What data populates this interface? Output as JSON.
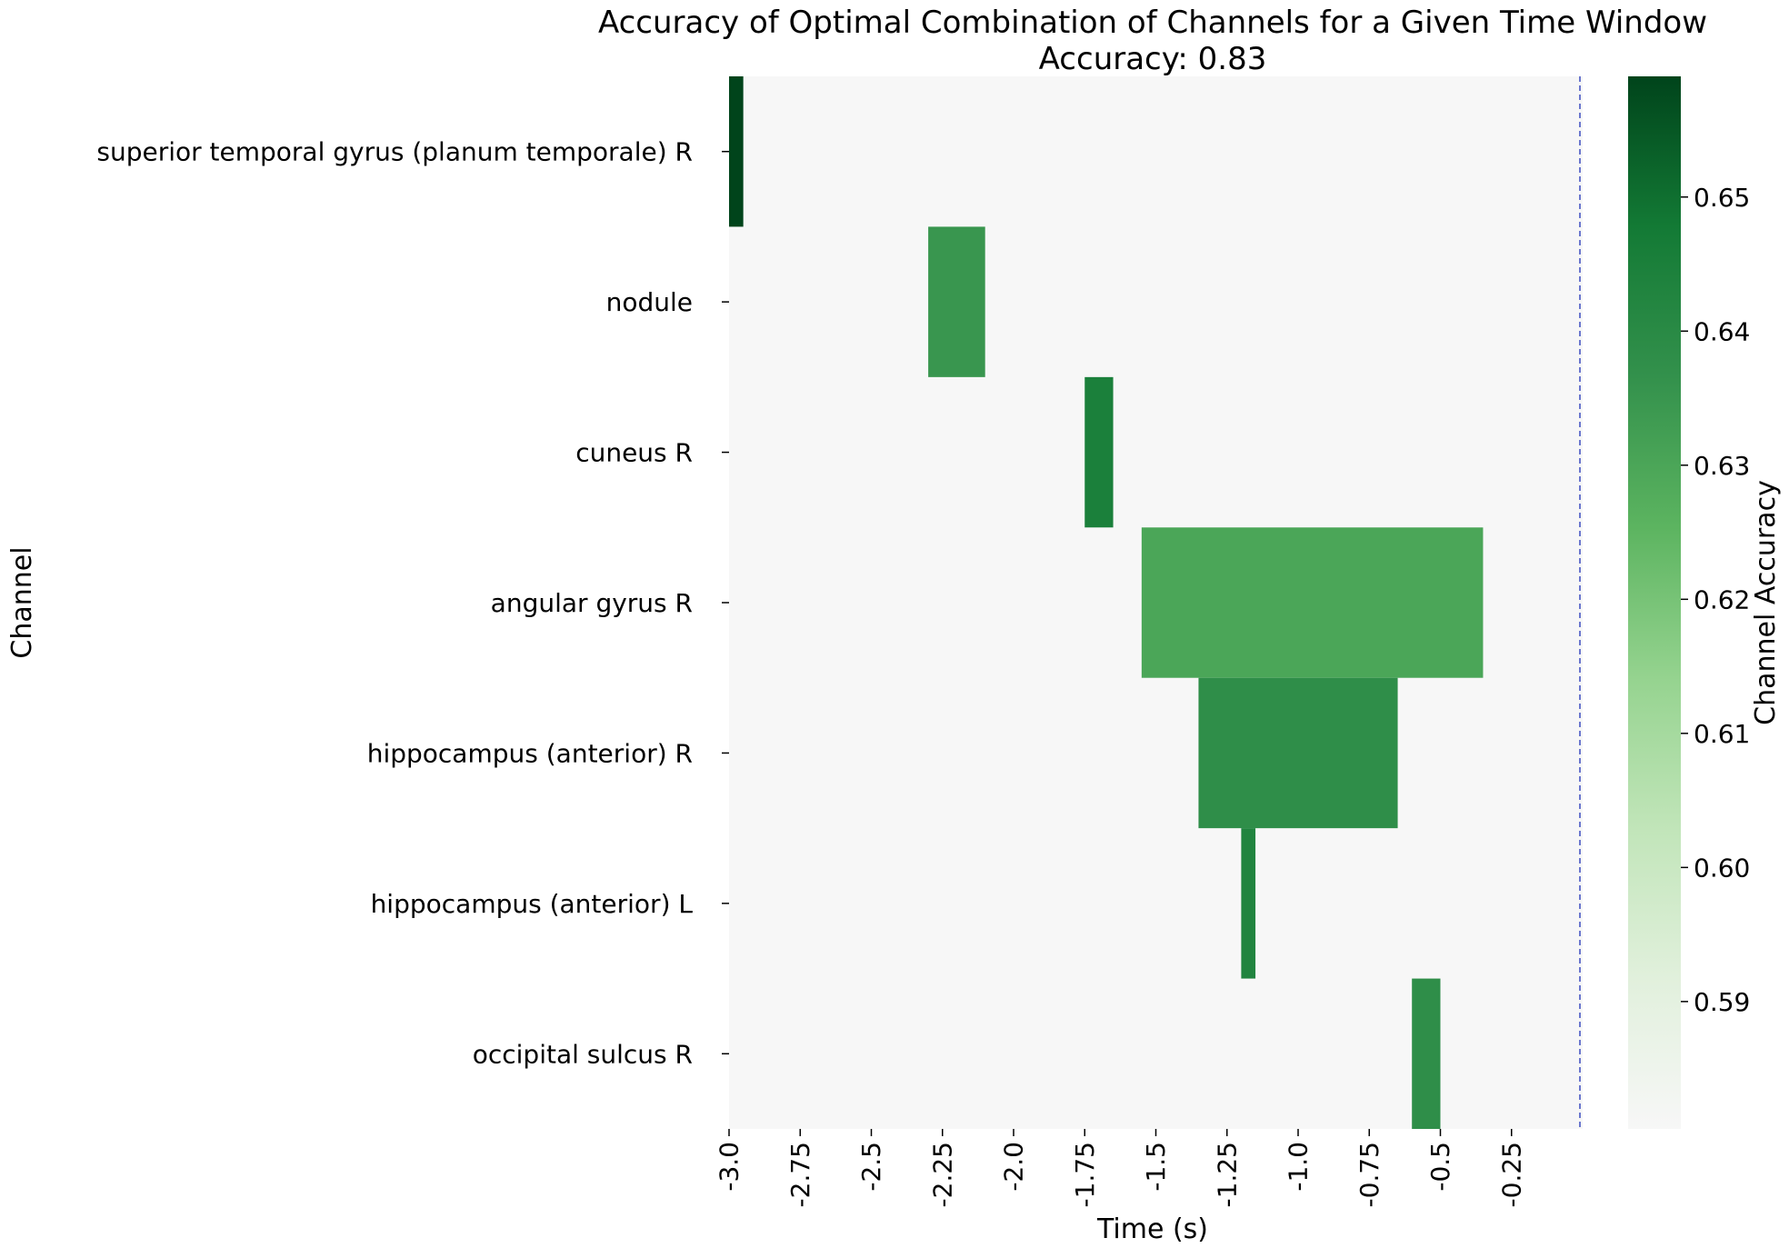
{
  "chart_data": {
    "type": "heatmap",
    "title": "Accuracy of Optimal Combination of Channels for a Given Time Window",
    "subtitle": "Accuracy: 0.83",
    "xlabel": "Time (s)",
    "ylabel": "Channel",
    "colorbar_label": "Channel Accuracy",
    "xlim": [
      -3.0,
      0.0
    ],
    "x_ticks": [
      {
        "value": -3.0,
        "label": "-3.0"
      },
      {
        "value": -2.75,
        "label": "-2.75"
      },
      {
        "value": -2.5,
        "label": "-2.5"
      },
      {
        "value": -2.25,
        "label": "-2.25"
      },
      {
        "value": -2.0,
        "label": "-2.0"
      },
      {
        "value": -1.75,
        "label": "-1.75"
      },
      {
        "value": -1.5,
        "label": "-1.5"
      },
      {
        "value": -1.25,
        "label": "-1.25"
      },
      {
        "value": -1.0,
        "label": "-1.0"
      },
      {
        "value": -0.75,
        "label": "-0.75"
      },
      {
        "value": -0.5,
        "label": "-0.5"
      },
      {
        "value": -0.25,
        "label": "-0.25"
      }
    ],
    "channels": [
      "superior temporal gyrus (planum temporale) R",
      "nodule",
      "cuneus R",
      "angular gyrus R",
      "hippocampus (anterior) R",
      "hippocampus (anterior) L",
      "occipital sulcus R"
    ],
    "cells": [
      {
        "channel": "superior temporal gyrus (planum temporale) R",
        "x_start": -3.0,
        "x_end": -2.95,
        "value": 0.659
      },
      {
        "channel": "nodule",
        "x_start": -2.3,
        "x_end": -2.1,
        "value": 0.635
      },
      {
        "channel": "cuneus R",
        "x_start": -1.75,
        "x_end": -1.65,
        "value": 0.645
      },
      {
        "channel": "angular gyrus R",
        "x_start": -1.55,
        "x_end": -0.35,
        "value": 0.63
      },
      {
        "channel": "hippocampus (anterior) R",
        "x_start": -1.35,
        "x_end": -0.65,
        "value": 0.638
      },
      {
        "channel": "hippocampus (anterior) L",
        "x_start": -1.2,
        "x_end": -1.15,
        "value": 0.643
      },
      {
        "channel": "occipital sulcus R",
        "x_start": -0.6,
        "x_end": -0.5,
        "value": 0.638
      }
    ],
    "vline": {
      "x": 0.0,
      "style": "dashed",
      "color": "#3b4cc0"
    },
    "colorbar": {
      "vmin": 0.5805,
      "vmax": 0.659,
      "ticks": [
        {
          "value": 0.59,
          "label": "0.59"
        },
        {
          "value": 0.6,
          "label": "0.60"
        },
        {
          "value": 0.61,
          "label": "0.61"
        },
        {
          "value": 0.62,
          "label": "0.62"
        },
        {
          "value": 0.63,
          "label": "0.63"
        },
        {
          "value": 0.64,
          "label": "0.64"
        },
        {
          "value": 0.65,
          "label": "0.65"
        }
      ]
    },
    "colors": {
      "background": "#f7f7f7",
      "colormap": [
        "#f7f7f7",
        "#e1f0dc",
        "#c1e5b9",
        "#95d38f",
        "#5cb460",
        "#33914c",
        "#137a35",
        "#00441b"
      ]
    },
    "grid": false,
    "legend": "colorbar-right"
  }
}
